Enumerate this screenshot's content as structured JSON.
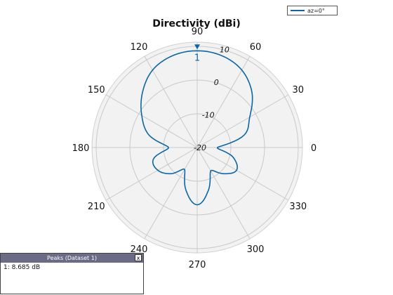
{
  "chart_data": {
    "type": "polar-line",
    "title": "Directivity (dBi)",
    "angle_ticks": [
      "0",
      "30",
      "60",
      "90",
      "120",
      "150",
      "180",
      "210",
      "240",
      "270",
      "300",
      "330"
    ],
    "radial_ticks": [
      "-20",
      "-10",
      "0",
      "10"
    ],
    "rlim": [
      -20,
      10
    ],
    "grid": true,
    "legend_position": "top-right",
    "series": [
      {
        "name": "az=0°",
        "color": "#0b66a6",
        "angles_deg": [
          0,
          15,
          30,
          45,
          60,
          75,
          90,
          105,
          120,
          135,
          150,
          165,
          180,
          195,
          210,
          225,
          240,
          255,
          270,
          285,
          300,
          315,
          330,
          345
        ],
        "values_dBi": [
          -14,
          -5.5,
          -2,
          3,
          6.5,
          8.2,
          8.685,
          8.2,
          6.5,
          3,
          -1,
          -5,
          -11.5,
          -6.5,
          -6.5,
          -9,
          -12.5,
          -7,
          -3,
          -7,
          -12,
          -9,
          -6.5,
          -9
        ]
      }
    ],
    "peak_marker": {
      "label": "1",
      "angle_deg": 90,
      "value_dBi": 8.685
    }
  },
  "peaks_window": {
    "title": "Peaks (Dataset 1)",
    "close_label": "x",
    "row": "1: 8.685 dB"
  }
}
